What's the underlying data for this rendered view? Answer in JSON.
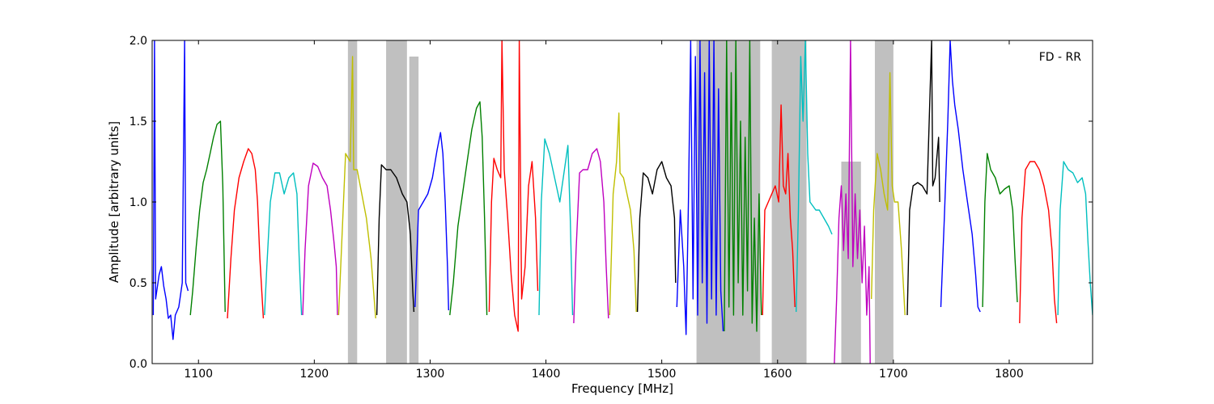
{
  "chart_data": {
    "type": "line",
    "title": "",
    "xlabel": "Frequency [MHz]",
    "ylabel": "Amplitude [arbitrary units]",
    "annotation": "FD - RR",
    "xlim": [
      1060,
      1872
    ],
    "ylim": [
      0.0,
      2.0
    ],
    "xticks": [
      1100,
      1200,
      1300,
      1400,
      1500,
      1600,
      1700,
      1800
    ],
    "yticks": [
      0.0,
      0.5,
      1.0,
      1.5,
      2.0
    ],
    "xtick_labels": [
      "1100",
      "1200",
      "1300",
      "1400",
      "1500",
      "1600",
      "1700",
      "1800"
    ],
    "ytick_labels": [
      "0.0",
      "0.5",
      "1.0",
      "1.5",
      "2.0"
    ],
    "grid": false,
    "legend": "none",
    "background_color": "#c0c0c0",
    "background_spans": [
      {
        "name": "",
        "x": [
          1229,
          1237
        ],
        "y_max": 2.0
      },
      {
        "name": "",
        "x": [
          1262,
          1280
        ],
        "y_max": 2.0
      },
      {
        "name": "",
        "x": [
          1282,
          1290
        ],
        "y_max": 1.9
      },
      {
        "name": "",
        "x": [
          1530,
          1585
        ],
        "y_max": 2.0
      },
      {
        "name": "",
        "x": [
          1595,
          1625
        ],
        "y_max": 2.0
      },
      {
        "name": "",
        "x": [
          1655,
          1672
        ],
        "y_max": 1.25
      },
      {
        "name": "",
        "x": [
          1684,
          1700
        ],
        "y_max": 2.0
      }
    ],
    "series": [
      {
        "color": "#0000ff",
        "x": [
          1061,
          1062,
          1063,
          1066,
          1068,
          1070,
          1072,
          1074,
          1076,
          1078,
          1080,
          1083,
          1086,
          1088,
          1089,
          1091
        ],
        "y": [
          0.3,
          2.0,
          0.4,
          0.55,
          0.6,
          0.48,
          0.4,
          0.28,
          0.3,
          0.15,
          0.3,
          0.35,
          0.5,
          2.0,
          0.5,
          0.45
        ]
      },
      {
        "color": "#008000",
        "x": [
          1093,
          1095,
          1098,
          1101,
          1104,
          1107,
          1110,
          1113,
          1116,
          1119,
          1121,
          1123
        ],
        "y": [
          0.3,
          0.45,
          0.72,
          0.95,
          1.12,
          1.2,
          1.3,
          1.4,
          1.48,
          1.5,
          1.1,
          0.32
        ]
      },
      {
        "color": "#ff0000",
        "x": [
          1125,
          1128,
          1131,
          1135,
          1139,
          1143,
          1146,
          1149,
          1151,
          1153,
          1156
        ],
        "y": [
          0.28,
          0.65,
          0.95,
          1.15,
          1.25,
          1.33,
          1.3,
          1.2,
          1.0,
          0.65,
          0.28
        ]
      },
      {
        "color": "#00bfbf",
        "x": [
          1157,
          1159,
          1162,
          1166,
          1170,
          1174,
          1178,
          1182,
          1185,
          1187,
          1189
        ],
        "y": [
          0.3,
          0.6,
          1.0,
          1.18,
          1.18,
          1.05,
          1.15,
          1.18,
          1.05,
          0.65,
          0.3
        ]
      },
      {
        "color": "#bf00bf",
        "x": [
          1190,
          1192,
          1195,
          1199,
          1203,
          1207,
          1211,
          1214,
          1217,
          1219,
          1220
        ],
        "y": [
          0.3,
          0.7,
          1.1,
          1.24,
          1.22,
          1.15,
          1.1,
          0.95,
          0.75,
          0.6,
          0.3
        ]
      },
      {
        "color": "#bfbf00",
        "x": [
          1221,
          1224,
          1227,
          1231,
          1233,
          1234,
          1237,
          1241,
          1245,
          1249,
          1253
        ],
        "y": [
          0.3,
          0.8,
          1.3,
          1.25,
          1.9,
          1.2,
          1.2,
          1.05,
          0.9,
          0.65,
          0.28
        ]
      },
      {
        "color": "#000000",
        "x": [
          1254,
          1256,
          1258,
          1262,
          1266,
          1271,
          1276,
          1280,
          1283,
          1285,
          1286
        ],
        "y": [
          0.3,
          0.9,
          1.23,
          1.2,
          1.2,
          1.15,
          1.05,
          1.0,
          0.8,
          0.45,
          0.32
        ]
      },
      {
        "color": "#0000ff",
        "x": [
          1287,
          1290,
          1294,
          1298,
          1302,
          1306,
          1309,
          1311,
          1313,
          1315,
          1316
        ],
        "y": [
          0.35,
          0.95,
          1.0,
          1.05,
          1.15,
          1.32,
          1.43,
          1.3,
          1.0,
          0.6,
          0.33
        ]
      },
      {
        "color": "#008000",
        "x": [
          1317,
          1320,
          1324,
          1328,
          1332,
          1336,
          1340,
          1343,
          1345,
          1347,
          1349
        ],
        "y": [
          0.3,
          0.5,
          0.85,
          1.05,
          1.25,
          1.45,
          1.58,
          1.62,
          1.4,
          0.9,
          0.3
        ]
      },
      {
        "color": "#ff0000",
        "x": [
          1351,
          1353,
          1355,
          1358,
          1361,
          1362,
          1364,
          1367,
          1370,
          1373,
          1376,
          1377,
          1379,
          1382,
          1385,
          1388,
          1391,
          1393
        ],
        "y": [
          0.32,
          1.0,
          1.27,
          1.2,
          1.15,
          2.0,
          1.2,
          0.9,
          0.55,
          0.3,
          0.2,
          2.0,
          0.4,
          0.6,
          1.1,
          1.25,
          0.9,
          0.45
        ]
      },
      {
        "color": "#00bfbf",
        "x": [
          1394,
          1396,
          1399,
          1403,
          1406,
          1409,
          1412,
          1416,
          1419,
          1421,
          1423
        ],
        "y": [
          0.3,
          1.0,
          1.39,
          1.3,
          1.2,
          1.1,
          1.0,
          1.2,
          1.35,
          0.9,
          0.3
        ]
      },
      {
        "color": "#bf00bf",
        "x": [
          1424,
          1426,
          1429,
          1432,
          1436,
          1440,
          1444,
          1447,
          1450,
          1452,
          1454
        ],
        "y": [
          0.25,
          0.7,
          1.18,
          1.2,
          1.2,
          1.3,
          1.33,
          1.25,
          1.0,
          0.6,
          0.28
        ]
      },
      {
        "color": "#bfbf00",
        "x": [
          1455,
          1458,
          1461,
          1463,
          1464,
          1467,
          1470,
          1473,
          1476,
          1478
        ],
        "y": [
          0.3,
          1.05,
          1.25,
          1.55,
          1.18,
          1.15,
          1.05,
          0.95,
          0.7,
          0.32
        ]
      },
      {
        "color": "#000000",
        "x": [
          1479,
          1481,
          1484,
          1488,
          1492,
          1496,
          1500,
          1504,
          1508,
          1511,
          1512
        ],
        "y": [
          0.32,
          0.9,
          1.18,
          1.15,
          1.05,
          1.2,
          1.25,
          1.15,
          1.1,
          0.9,
          0.5
        ]
      },
      {
        "color": "#0000ff",
        "x": [
          1513,
          1516,
          1519,
          1521,
          1523,
          1525,
          1527,
          1529,
          1531,
          1533,
          1535,
          1537,
          1539,
          1541,
          1543,
          1545,
          1547,
          1549,
          1551,
          1553
        ],
        "y": [
          0.35,
          0.95,
          0.6,
          0.18,
          1.0,
          2.0,
          0.4,
          1.9,
          0.3,
          2.0,
          0.5,
          1.8,
          0.25,
          2.0,
          0.4,
          2.0,
          0.3,
          1.7,
          0.45,
          0.2
        ]
      },
      {
        "color": "#008000",
        "x": [
          1554,
          1556,
          1558,
          1560,
          1562,
          1564,
          1566,
          1568,
          1570,
          1572,
          1574,
          1576,
          1578,
          1580,
          1582,
          1584,
          1586
        ],
        "y": [
          0.2,
          2.0,
          0.35,
          1.8,
          0.3,
          2.0,
          0.5,
          1.5,
          0.3,
          1.4,
          0.45,
          2.0,
          0.25,
          0.9,
          0.2,
          1.05,
          0.3
        ]
      },
      {
        "color": "#ff0000",
        "x": [
          1587,
          1589,
          1592,
          1595,
          1598,
          1601,
          1603,
          1605,
          1607,
          1609,
          1611,
          1613,
          1615
        ],
        "y": [
          0.3,
          0.95,
          1.0,
          1.05,
          1.1,
          1.0,
          1.6,
          1.1,
          1.05,
          1.3,
          0.9,
          0.7,
          0.35
        ]
      },
      {
        "color": "#00bfbf",
        "x": [
          1616,
          1618,
          1620,
          1622,
          1624,
          1626,
          1628,
          1630,
          1633,
          1636,
          1640,
          1644,
          1647
        ],
        "y": [
          0.32,
          0.95,
          1.9,
          1.5,
          2.0,
          1.3,
          1.0,
          0.98,
          0.95,
          0.95,
          0.9,
          0.85,
          0.8
        ]
      },
      {
        "color": "#bf00bf",
        "x": [
          1649,
          1651,
          1653,
          1655,
          1657,
          1659,
          1661,
          1663,
          1665,
          1667,
          1669,
          1671,
          1673,
          1675,
          1677,
          1679,
          1680
        ],
        "y": [
          0.0,
          0.4,
          0.9,
          1.1,
          0.7,
          1.05,
          0.65,
          2.0,
          0.6,
          1.05,
          0.65,
          0.95,
          0.5,
          0.85,
          0.3,
          0.6,
          0.0
        ]
      },
      {
        "color": "#bfbf00",
        "x": [
          1681,
          1683,
          1686,
          1689,
          1692,
          1695,
          1697,
          1699,
          1701,
          1704,
          1707,
          1710
        ],
        "y": [
          0.4,
          0.95,
          1.3,
          1.2,
          1.05,
          0.95,
          1.8,
          1.1,
          1.0,
          1.0,
          0.7,
          0.3
        ]
      },
      {
        "color": "#000000",
        "x": [
          1712,
          1714,
          1717,
          1721,
          1725,
          1729,
          1733,
          1734,
          1736,
          1739,
          1740
        ],
        "y": [
          0.3,
          0.95,
          1.1,
          1.12,
          1.1,
          1.05,
          2.0,
          1.1,
          1.15,
          1.4,
          1.0
        ]
      },
      {
        "color": "#0000ff",
        "x": [
          1741,
          1744,
          1747,
          1749,
          1751,
          1753,
          1756,
          1760,
          1764,
          1768,
          1771,
          1773,
          1775
        ],
        "y": [
          0.35,
          0.9,
          1.5,
          2.0,
          1.75,
          1.6,
          1.45,
          1.2,
          1.0,
          0.8,
          0.55,
          0.35,
          0.32
        ]
      },
      {
        "color": "#008000",
        "x": [
          1777,
          1779,
          1781,
          1784,
          1788,
          1792,
          1796,
          1800,
          1803,
          1805,
          1807
        ],
        "y": [
          0.35,
          1.0,
          1.3,
          1.2,
          1.15,
          1.05,
          1.08,
          1.1,
          0.95,
          0.65,
          0.38
        ]
      },
      {
        "color": "#ff0000",
        "x": [
          1809,
          1811,
          1814,
          1818,
          1822,
          1826,
          1830,
          1834,
          1837,
          1839,
          1841
        ],
        "y": [
          0.25,
          0.9,
          1.2,
          1.25,
          1.25,
          1.2,
          1.1,
          0.95,
          0.7,
          0.4,
          0.25
        ]
      },
      {
        "color": "#00bfbf",
        "x": [
          1842,
          1844,
          1847,
          1851,
          1855,
          1859,
          1863,
          1866,
          1868,
          1870,
          1872
        ],
        "y": [
          0.3,
          0.95,
          1.25,
          1.2,
          1.18,
          1.12,
          1.15,
          1.05,
          0.75,
          0.5,
          0.3
        ]
      }
    ]
  }
}
